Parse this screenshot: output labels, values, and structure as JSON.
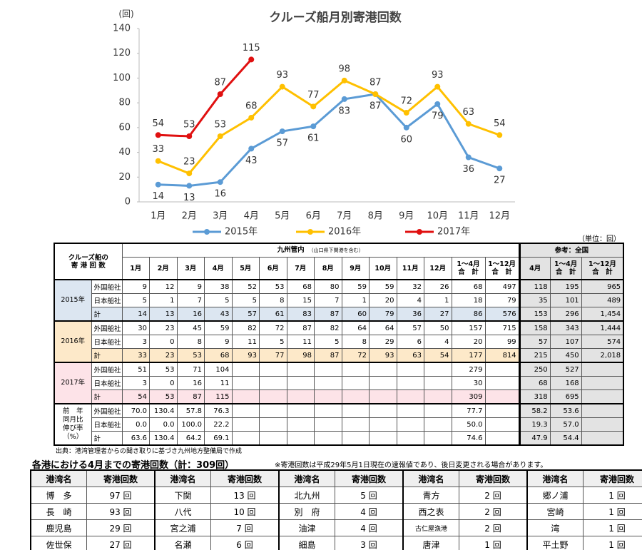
{
  "chart_data": {
    "type": "line",
    "title": "クルーズ船月別寄港回数",
    "y_unit": "(回)",
    "categories": [
      "1月",
      "2月",
      "3月",
      "4月",
      "5月",
      "6月",
      "7月",
      "8月",
      "9月",
      "10月",
      "11月",
      "12月"
    ],
    "series": [
      {
        "name": "2015年",
        "color": "#5b9bd5",
        "values": [
          14,
          13,
          16,
          43,
          57,
          61,
          83,
          87,
          60,
          79,
          36,
          27
        ]
      },
      {
        "name": "2016年",
        "color": "#ffc000",
        "values": [
          33,
          23,
          53,
          68,
          93,
          77,
          98,
          87,
          72,
          93,
          63,
          54
        ]
      },
      {
        "name": "2017年",
        "color": "#e01010",
        "values": [
          54,
          53,
          87,
          115,
          null,
          null,
          null,
          null,
          null,
          null,
          null,
          null
        ]
      }
    ],
    "ylim": [
      0,
      140
    ],
    "yticks": [
      0,
      20,
      40,
      60,
      80,
      100,
      120,
      140
    ],
    "grid": false,
    "legend": "bottom"
  },
  "table": {
    "unit": "（単位：回）",
    "corner": [
      "クルーズ船の",
      "寄 港 回 数"
    ],
    "kyushu": "九州管内",
    "kyushu_note": "（山口県下関港を含む）",
    "national": "参考：全国",
    "columns": [
      "1月",
      "2月",
      "3月",
      "4月",
      "5月",
      "6月",
      "7月",
      "8月",
      "9月",
      "10月",
      "11月",
      "12月",
      [
        "1～4月",
        "合　計"
      ],
      [
        "1～12月",
        "合　計"
      ],
      "4月",
      [
        "1～4月",
        "合　計"
      ],
      [
        "1～12月",
        "合　計"
      ]
    ],
    "groups": [
      {
        "label": [
          "2015年"
        ],
        "color": "#dce6f1",
        "rows": [
          {
            "label": "外国船社",
            "cells": [
              "9",
              "12",
              "9",
              "38",
              "52",
              "53",
              "68",
              "80",
              "59",
              "59",
              "32",
              "26",
              "68",
              "497",
              "118",
              "195",
              "965"
            ]
          },
          {
            "label": "日本船社",
            "cells": [
              "5",
              "1",
              "7",
              "5",
              "5",
              "8",
              "15",
              "7",
              "1",
              "20",
              "4",
              "1",
              "18",
              "79",
              "35",
              "101",
              "489"
            ]
          },
          {
            "label": "計",
            "cells": [
              "14",
              "13",
              "16",
              "43",
              "57",
              "61",
              "83",
              "87",
              "60",
              "79",
              "36",
              "27",
              "86",
              "576",
              "153",
              "296",
              "1,454"
            ]
          }
        ]
      },
      {
        "label": [
          "2016年"
        ],
        "color": "#fde9c9",
        "rows": [
          {
            "label": "外国船社",
            "cells": [
              "30",
              "23",
              "45",
              "59",
              "82",
              "72",
              "87",
              "82",
              "64",
              "64",
              "57",
              "50",
              "157",
              "715",
              "158",
              "343",
              "1,444"
            ]
          },
          {
            "label": "日本船社",
            "cells": [
              "3",
              "0",
              "8",
              "9",
              "11",
              "5",
              "11",
              "5",
              "8",
              "29",
              "6",
              "4",
              "20",
              "99",
              "57",
              "107",
              "574"
            ]
          },
          {
            "label": "計",
            "cells": [
              "33",
              "23",
              "53",
              "68",
              "93",
              "77",
              "98",
              "87",
              "72",
              "93",
              "63",
              "54",
              "177",
              "814",
              "215",
              "450",
              "2,018"
            ]
          }
        ]
      },
      {
        "label": [
          "2017年"
        ],
        "color": "#fde3e8",
        "rows": [
          {
            "label": "外国船社",
            "cells": [
              "51",
              "53",
              "71",
              "104",
              null,
              null,
              null,
              null,
              null,
              null,
              null,
              null,
              "279",
              null,
              "250",
              "527",
              null
            ]
          },
          {
            "label": "日本船社",
            "cells": [
              "3",
              "0",
              "16",
              "11",
              null,
              null,
              null,
              null,
              null,
              null,
              null,
              null,
              "30",
              null,
              "68",
              "168",
              null
            ]
          },
          {
            "label": "計",
            "cells": [
              "54",
              "53",
              "87",
              "115",
              null,
              null,
              null,
              null,
              null,
              null,
              null,
              null,
              "309",
              null,
              "318",
              "695",
              null
            ]
          }
        ]
      },
      {
        "label": [
          "前　年",
          "同月比",
          "伸び率",
          "（%）"
        ],
        "color": "#ffffff",
        "rows": [
          {
            "label": "外国船社",
            "cells": [
              "70.0",
              "130.4",
              "57.8",
              "76.3",
              null,
              null,
              null,
              null,
              null,
              null,
              null,
              null,
              "77.7",
              null,
              "58.2",
              "53.6",
              null
            ]
          },
          {
            "label": "日本船社",
            "cells": [
              "0.0",
              "0.0",
              "100.0",
              "22.2",
              null,
              null,
              null,
              null,
              null,
              null,
              null,
              null,
              "50.0",
              null,
              "19.3",
              "57.0",
              null
            ]
          },
          {
            "label": "計",
            "cells": [
              "63.6",
              "130.4",
              "64.2",
              "69.1",
              null,
              null,
              null,
              null,
              null,
              null,
              null,
              null,
              "74.6",
              null,
              "47.9",
              "54.4",
              null
            ]
          }
        ]
      }
    ],
    "source": "出典：港湾管理者からの聞き取りに基づき九州地方整備局で作成"
  },
  "ports": {
    "title": "各港における4月までの寄港回数（計：309回）",
    "note": "※寄港回数は平成29年5月1日現在の速報値であり、後日変更される場合があります。",
    "headers": [
      "港湾名",
      "寄港回数"
    ],
    "rows": [
      [
        [
          "博　多",
          "97 回"
        ],
        [
          "下関",
          "13 回"
        ],
        [
          "北九州",
          "5 回"
        ],
        [
          "青方",
          "2 回"
        ],
        [
          "郷ノ浦",
          "1 回"
        ]
      ],
      [
        [
          "長　崎",
          "93 回"
        ],
        [
          "八代",
          "10 回"
        ],
        [
          "別　府",
          "4 回"
        ],
        [
          "西之表",
          "2 回"
        ],
        [
          "宮崎",
          "1 回"
        ]
      ],
      [
        [
          "鹿児島",
          "29 回"
        ],
        [
          "宮之浦",
          "7 回"
        ],
        [
          "油津",
          "4 回"
        ],
        [
          "古仁屋漁港",
          "2 回"
        ],
        [
          "湾",
          "1 回"
        ]
      ],
      [
        [
          "佐世保",
          "27 回"
        ],
        [
          "名瀬",
          "6 回"
        ],
        [
          "細島",
          "3 回"
        ],
        [
          "唐津",
          "1 回"
        ],
        [
          "平土野",
          "1 回"
        ]
      ]
    ]
  }
}
